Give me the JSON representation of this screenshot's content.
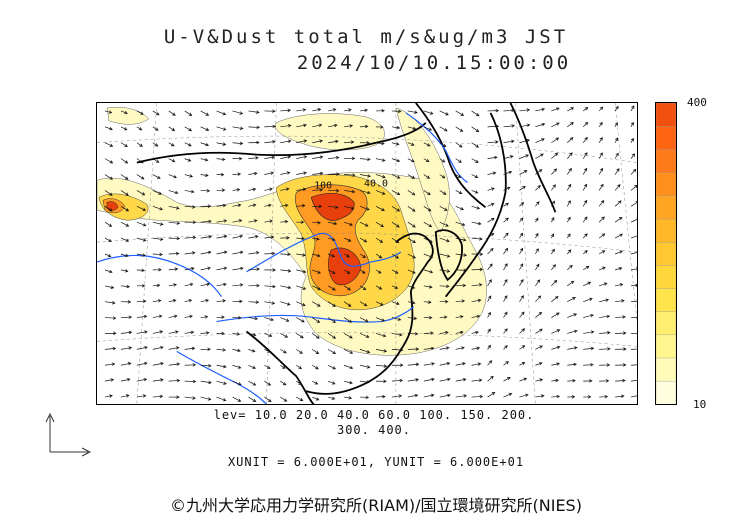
{
  "title": {
    "line1": "U-V&Dust total m/s&ug/m3 JST",
    "line2": "2024/10/10.15:00:00"
  },
  "colorbar": {
    "max_label": "400",
    "min_label": "10",
    "colors": [
      "#ffffe0",
      "#fffbb8",
      "#fff690",
      "#ffee70",
      "#ffe34a",
      "#ffd73a",
      "#ffc830",
      "#ffb828",
      "#ffa522",
      "#ff901c",
      "#ff7a18",
      "#ff6412",
      "#f2500e"
    ]
  },
  "contour_labels": {
    "label_a": "100",
    "label_b": "40.0"
  },
  "levels": {
    "line1": "lev= 10.0 20.0 40.0 60.0 100. 150. 200.",
    "line2": "300. 400."
  },
  "units": "XUNIT = 6.000E+01, YUNIT = 6.000E+01",
  "credit": "©九州大学応用力学研究所(RIAM)/国立環境研究所(NIES)",
  "map": {
    "ocean_color": "#ffffff",
    "coast_color": "#000000",
    "river_color": "#1e5fff",
    "dust_light": "#fff9c2",
    "dust_mid": "#ffd84a",
    "dust_high": "#ff7a1a",
    "dust_peak": "#e8400c"
  }
}
